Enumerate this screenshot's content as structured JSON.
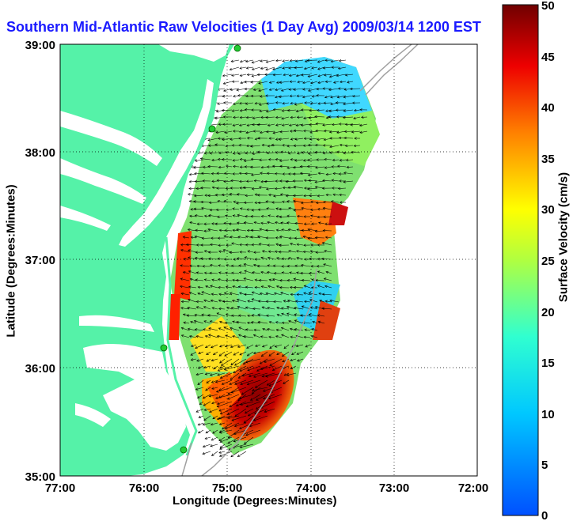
{
  "title": "Southern Mid-Atlantic Raw Velocities (1 Day Avg) 2009/03/14 1200 EST",
  "xlabel": "Longitude (Degrees:Minutes)",
  "ylabel": "Latitude (Degrees:Minutes)",
  "x_ticks": [
    "77:00",
    "76:00",
    "75:00",
    "74:00",
    "73:00",
    "72:00"
  ],
  "y_ticks": [
    "39:00",
    "38:00",
    "37:00",
    "36:00",
    "35:00"
  ],
  "colorbar": {
    "label": "Surface Velocity (cm/s)",
    "ticks": [
      "50",
      "45",
      "40",
      "35",
      "30",
      "25",
      "20",
      "15",
      "10",
      "5",
      "0"
    ],
    "min": 0,
    "max": 50
  },
  "colors": {
    "land": "#55f2a8",
    "title": "#1a1aff",
    "grid": "#000000"
  }
}
